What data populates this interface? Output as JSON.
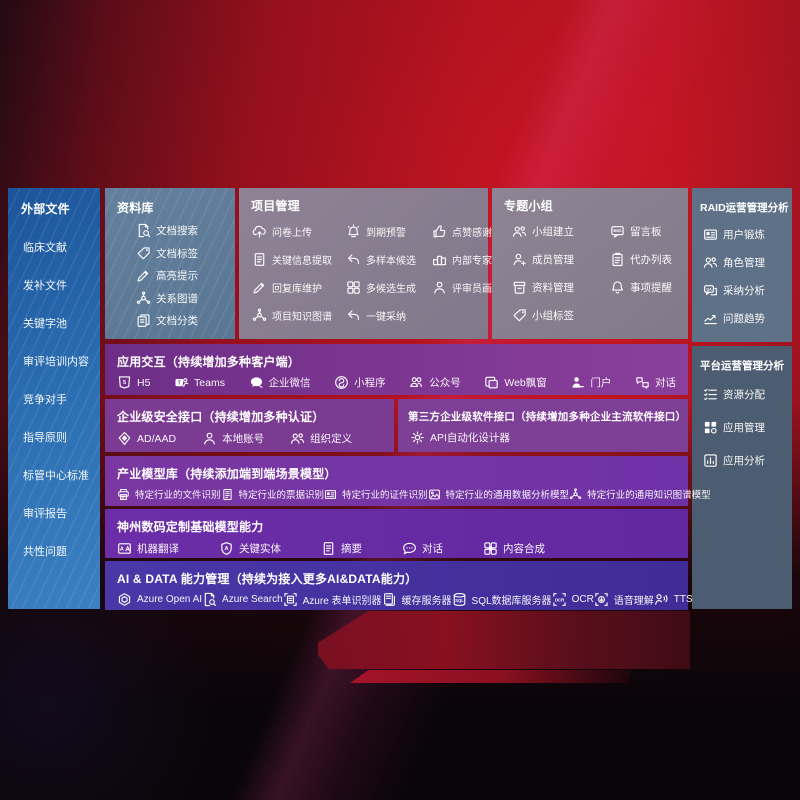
{
  "colors": {
    "background_red": "#b5131f",
    "sidebar_blue": "#2a6cb0",
    "library_slate": "#5e7a97",
    "panel_mauve": "#8a7e90",
    "raid_slate": "#5f7186",
    "platform_slate": "#4d5d71",
    "row_purple": "#7b3b93",
    "row_violet": "#6c2ea8",
    "row_indigo": "#4534a3"
  },
  "external_files": {
    "title": "外部文件",
    "items": [
      {
        "label": "临床文献"
      },
      {
        "label": "发补文件"
      },
      {
        "label": "关键字池"
      },
      {
        "label": "审评培训内容"
      },
      {
        "label": "竞争对手"
      },
      {
        "label": "指导原则"
      },
      {
        "label": "标管中心标准"
      },
      {
        "label": "审评报告"
      },
      {
        "label": "共性问题"
      }
    ]
  },
  "library": {
    "title": "资料库",
    "items": [
      {
        "label": "文档搜索",
        "icon": "doc-search-icon"
      },
      {
        "label": "文档标签",
        "icon": "tag-icon"
      },
      {
        "label": "高亮提示",
        "icon": "highlight-pen-icon"
      },
      {
        "label": "关系图谱",
        "icon": "knowledge-graph-icon"
      },
      {
        "label": "文档分类",
        "icon": "doc-stack-icon"
      }
    ]
  },
  "project": {
    "title": "项目管理",
    "items": [
      {
        "label": "问卷上传",
        "icon": "cloud-upload-icon"
      },
      {
        "label": "到期预警",
        "icon": "alarm-icon"
      },
      {
        "label": "点赞感谢",
        "icon": "thumb-up-icon"
      },
      {
        "label": "关键信息提取",
        "icon": "doc-extract-icon"
      },
      {
        "label": "多样本候选",
        "icon": "reply-icon"
      },
      {
        "label": "内部专家排名",
        "icon": "ranking-icon"
      },
      {
        "label": "回复库维护",
        "icon": "pen-icon"
      },
      {
        "label": "多候选生成",
        "icon": "multi-grid-icon"
      },
      {
        "label": "评审员画像",
        "icon": "person-icon"
      },
      {
        "label": "项目知识图谱",
        "icon": "knowledge-graph-icon"
      },
      {
        "label": "一键采纳",
        "icon": "adopt-arrow-icon"
      }
    ]
  },
  "topic": {
    "title": "专题小组",
    "items": [
      {
        "label": "小组建立",
        "icon": "group-icon"
      },
      {
        "label": "留言板",
        "icon": "bbs-icon"
      },
      {
        "label": "成员管理",
        "icon": "member-add-icon"
      },
      {
        "label": "代办列表",
        "icon": "todo-list-icon"
      },
      {
        "label": "资料管理",
        "icon": "archive-icon"
      },
      {
        "label": "事项提醒",
        "icon": "bell-icon"
      },
      {
        "label": "小组标签",
        "icon": "tag-icon"
      }
    ]
  },
  "raid": {
    "title": "RAID运营管理分析",
    "items": [
      {
        "label": "用户锻炼",
        "icon": "id-card-icon"
      },
      {
        "label": "角色管理",
        "icon": "roles-icon"
      },
      {
        "label": "采纳分析",
        "icon": "qa-chat-icon"
      },
      {
        "label": "问题趋势",
        "icon": "trend-chart-icon"
      }
    ]
  },
  "platform": {
    "title": "平台运营管理分析",
    "items": [
      {
        "label": "资源分配",
        "icon": "resource-list-icon"
      },
      {
        "label": "应用管理",
        "icon": "app-grid-icon"
      },
      {
        "label": "应用分析",
        "icon": "app-chart-icon"
      }
    ]
  },
  "interaction": {
    "title": "应用交互（持续增加多种客户端）",
    "items": [
      {
        "label": "H5",
        "icon": "h5-icon"
      },
      {
        "label": "Teams",
        "icon": "teams-icon"
      },
      {
        "label": "企业微信",
        "icon": "wechat-work-icon"
      },
      {
        "label": "小程序",
        "icon": "mini-program-icon"
      },
      {
        "label": "公众号",
        "icon": "official-account-icon"
      },
      {
        "label": "Web飘窗",
        "icon": "web-window-icon"
      },
      {
        "label": "门户",
        "icon": "portal-user-icon"
      },
      {
        "label": "对话",
        "icon": "dialog-icon"
      }
    ]
  },
  "security": {
    "title": "企业级安全接口（持续增加多种认证）",
    "items": [
      {
        "label": "AD/AAD",
        "icon": "ad-shield-icon"
      },
      {
        "label": "本地账号",
        "icon": "local-account-icon"
      },
      {
        "label": "组织定义",
        "icon": "org-define-icon"
      }
    ]
  },
  "thirdparty": {
    "title": "第三方企业级软件接口（持续增加多种企业主流软件接口）",
    "items": [
      {
        "label": "API自动化设计器",
        "icon": "api-gear-icon"
      }
    ]
  },
  "industry": {
    "title": "产业模型库（持续添加端到端场景模型）",
    "items": [
      {
        "label": "特定行业的文件识别",
        "icon": "file-recognition-icon"
      },
      {
        "label": "特定行业的票据识别",
        "icon": "receipt-recognition-icon"
      },
      {
        "label": "特定行业的证件识别",
        "icon": "certificate-recognition-icon"
      },
      {
        "label": "特定行业的通用数据分析模型",
        "icon": "data-analysis-model-icon"
      },
      {
        "label": "特定行业的通用知识图谱模型",
        "icon": "knowledge-graph-model-icon"
      }
    ]
  },
  "digital": {
    "title": "神州数码定制基础模型能力",
    "items": [
      {
        "label": "机器翻译",
        "icon": "translate-icon"
      },
      {
        "label": "关键实体",
        "icon": "key-entity-icon"
      },
      {
        "label": "摘要",
        "icon": "summary-icon"
      },
      {
        "label": "对话",
        "icon": "chat-icon"
      },
      {
        "label": "内容合成",
        "icon": "content-compose-icon"
      }
    ]
  },
  "aidata": {
    "title": "AI & DATA 能力管理（持续为接入更多AI&DATA能力）",
    "items": [
      {
        "label": "Azure Open AI",
        "icon": "openai-icon"
      },
      {
        "label": "Azure Search",
        "icon": "azure-search-icon"
      },
      {
        "label": "Azure 表单识别器",
        "icon": "form-recognizer-icon"
      },
      {
        "label": "缓存服务器",
        "icon": "cache-server-icon"
      },
      {
        "label": "SQL数据库服务器",
        "icon": "sql-database-icon"
      },
      {
        "label": "OCR",
        "icon": "ocr-icon"
      },
      {
        "label": "语音理解",
        "icon": "speech-understanding-icon"
      },
      {
        "label": "TTS",
        "icon": "tts-icon"
      }
    ]
  }
}
